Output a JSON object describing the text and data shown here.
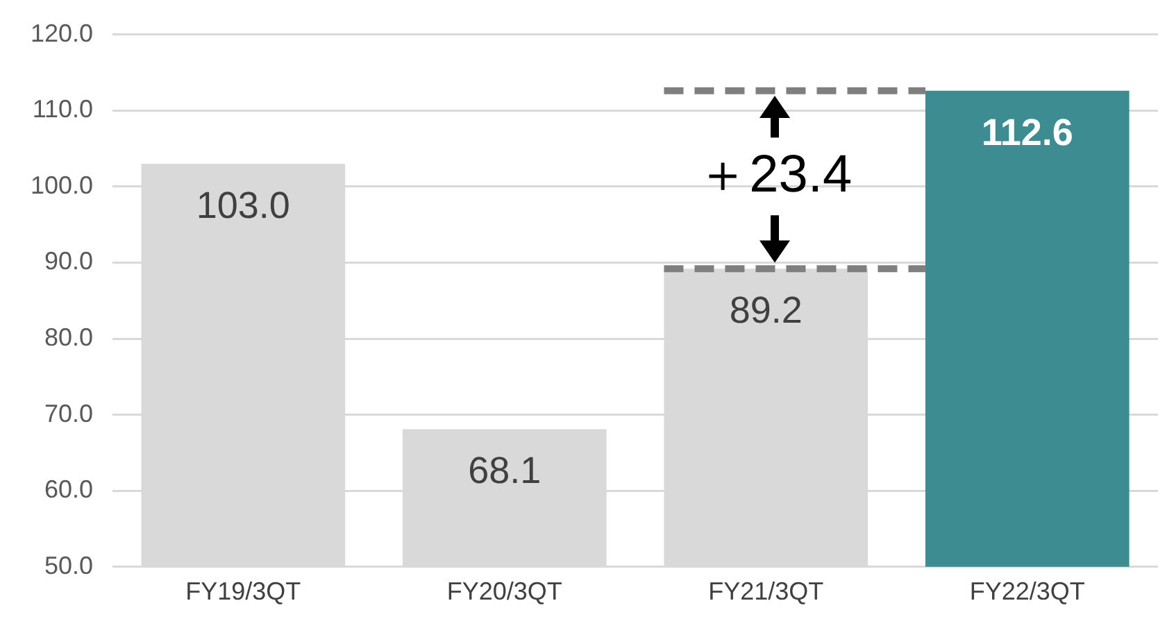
{
  "chart_data": {
    "type": "bar",
    "categories": [
      "FY19/3QT",
      "FY20/3QT",
      "FY21/3QT",
      "FY22/3QT"
    ],
    "values": [
      103.0,
      68.1,
      89.2,
      112.6
    ],
    "colors": [
      "#d9d9d9",
      "#d9d9d9",
      "#d9d9d9",
      "#3c8c91"
    ],
    "value_labels": [
      "103.0",
      "68.1",
      "89.2",
      "112.6"
    ],
    "ylim": [
      50,
      120
    ],
    "yticks": [
      {
        "value": 50,
        "label": "50.0"
      },
      {
        "value": 60,
        "label": "60.0"
      },
      {
        "value": 70,
        "label": "70.0"
      },
      {
        "value": 80,
        "label": "80.0"
      },
      {
        "value": 90,
        "label": "90.0"
      },
      {
        "value": 100,
        "label": "100.0"
      },
      {
        "value": 110,
        "label": "110.0"
      },
      {
        "value": 120,
        "label": "120.0"
      }
    ],
    "grid": "y",
    "ref_lines": [
      {
        "axis": "y",
        "value": 112.6,
        "color": "#7f7f7f",
        "line_style": "dashed"
      },
      {
        "axis": "y",
        "value": 89.2,
        "color": "#7f7f7f",
        "line_style": "dashed"
      }
    ],
    "annotations": [
      "＋23.4"
    ]
  }
}
